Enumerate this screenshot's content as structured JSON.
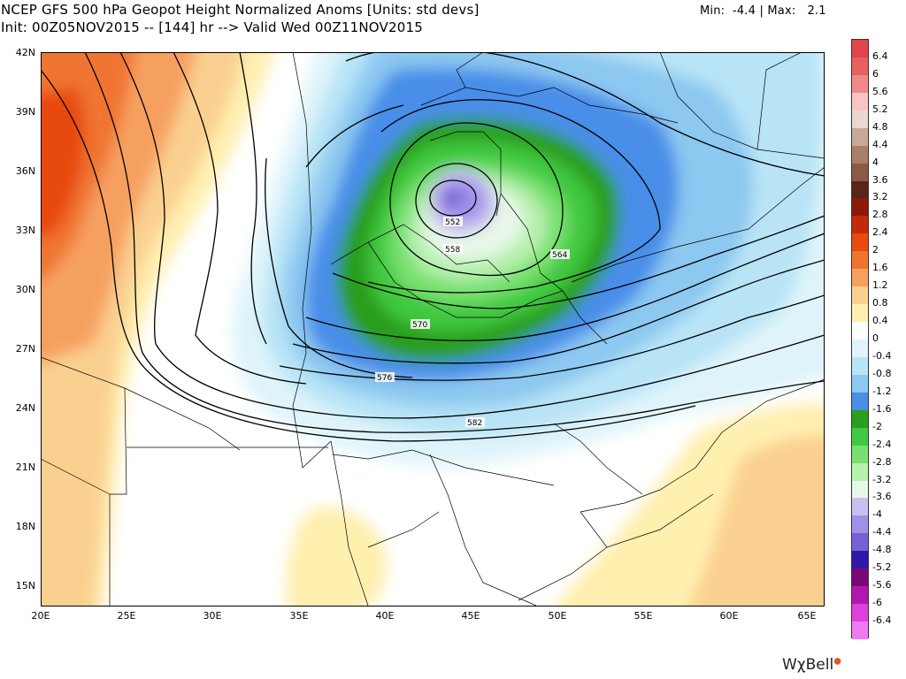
{
  "header": {
    "title": "NCEP GFS 500 hPa Geopot Height Normalized Anoms [Units: std devs]",
    "subtitle": "Init: 00Z05NOV2015 -- [144] hr --> Valid Wed 00Z11NOV2015",
    "min_label": "Min:",
    "min_value": "-4.4",
    "separator": "|",
    "max_label": "Max:",
    "max_value": "2.1"
  },
  "map": {
    "lat_labels": [
      "42N",
      "39N",
      "36N",
      "33N",
      "30N",
      "27N",
      "24N",
      "21N",
      "18N",
      "15N"
    ],
    "lon_labels": [
      "20E",
      "25E",
      "30E",
      "35E",
      "40E",
      "45E",
      "50E",
      "55E",
      "60E",
      "65E"
    ],
    "contour_labels": [
      "552",
      "558",
      "564",
      "570",
      "576",
      "582"
    ]
  },
  "colorbar": {
    "labels": [
      "6.4",
      "6",
      "5.6",
      "5.2",
      "4.8",
      "4.4",
      "4",
      "3.6",
      "3.2",
      "2.8",
      "2.4",
      "2",
      "1.6",
      "1.2",
      "0.8",
      "0.4",
      "0",
      "-0.4",
      "-0.8",
      "-1.2",
      "-1.6",
      "-2",
      "-2.4",
      "-2.8",
      "-3.2",
      "-3.6",
      "-4",
      "-4.4",
      "-4.8",
      "-5.2",
      "-5.6",
      "-6",
      "-6.4"
    ],
    "colors": [
      "#e0464a",
      "#e86060",
      "#f08a8a",
      "#f8c4c4",
      "#e8d8d0",
      "#c8a898",
      "#a8806a",
      "#8a5a44",
      "#5a2418",
      "#8a1a0a",
      "#c42a0a",
      "#e84a10",
      "#f07430",
      "#f6a060",
      "#fad090",
      "#fff0b0",
      "#ffffff",
      "#dff4fa",
      "#b8e4f6",
      "#8cc8f0",
      "#4a8ee8",
      "#2a9e1e",
      "#40c840",
      "#78e070",
      "#b8f0b0",
      "#e8f8e8",
      "#c8c0f0",
      "#a090e8",
      "#7860d8",
      "#3018a8",
      "#780878",
      "#b018b0",
      "#e040e0",
      "#f07af0"
    ]
  },
  "logo": {
    "text": "WχBell"
  }
}
